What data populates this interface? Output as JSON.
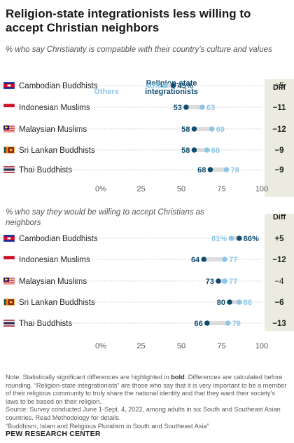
{
  "title": "Religion-state integrationists less willing to accept Christian neighbors",
  "colors": {
    "others": "#8dc6e8",
    "integrationists": "#0f4c6e",
    "diff_bg": "#ebebdf",
    "connector": "#dcdcdc",
    "gridline": "#b5b5b5"
  },
  "legend": {
    "others": "Others",
    "integrationists": "Religion-state integrationists"
  },
  "diff_header": "Diff",
  "chart_data": [
    {
      "type": "dot",
      "subtitle": "% who say Christianity is compatible with their country’s culture and values",
      "xlim": [
        0,
        100
      ],
      "ticks": [
        "0%",
        "25",
        "50",
        "75",
        "100"
      ],
      "tick_values": [
        0,
        25,
        50,
        75,
        100
      ],
      "rows": [
        {
          "label": "Cambodian Buddhists",
          "flag": "cambodia-flag-icon",
          "others": 40,
          "integrationists": 45,
          "others_label": "40%",
          "integrationists_label": "45%",
          "diff": "+5",
          "diff_bold": false
        },
        {
          "label": "Indonesian Muslims",
          "flag": "indonesia-flag-icon",
          "others": 63,
          "integrationists": 53,
          "others_label": "63",
          "integrationists_label": "53",
          "diff": "−11",
          "diff_bold": true
        },
        {
          "label": "Malaysian Muslims",
          "flag": "malaysia-flag-icon",
          "others": 69,
          "integrationists": 58,
          "others_label": "69",
          "integrationists_label": "58",
          "diff": "−12",
          "diff_bold": true
        },
        {
          "label": "Sri Lankan Buddhists",
          "flag": "srilanka-flag-icon",
          "others": 66,
          "integrationists": 58,
          "others_label": "66",
          "integrationists_label": "58",
          "diff": "−9",
          "diff_bold": true
        },
        {
          "label": "Thai Buddhists",
          "flag": "thailand-flag-icon",
          "others": 78,
          "integrationists": 68,
          "others_label": "78",
          "integrationists_label": "68",
          "diff": "−9",
          "diff_bold": true
        }
      ]
    },
    {
      "type": "dot",
      "subtitle": "% who say they would be willing to accept Christians as neighbors",
      "xlim": [
        0,
        100
      ],
      "ticks": [
        "0%",
        "25",
        "50",
        "75",
        "100"
      ],
      "tick_values": [
        0,
        25,
        50,
        75,
        100
      ],
      "rows": [
        {
          "label": "Cambodian Buddhists",
          "flag": "cambodia-flag-icon",
          "others": 81,
          "integrationists": 86,
          "others_label": "81%",
          "integrationists_label": "86%",
          "diff": "+5",
          "diff_bold": true
        },
        {
          "label": "Indonesian Muslims",
          "flag": "indonesia-flag-icon",
          "others": 77,
          "integrationists": 64,
          "others_label": "77",
          "integrationists_label": "64",
          "diff": "−12",
          "diff_bold": true
        },
        {
          "label": "Malaysian Muslims",
          "flag": "malaysia-flag-icon",
          "others": 77,
          "integrationists": 73,
          "others_label": "77",
          "integrationists_label": "73",
          "diff": "−4",
          "diff_bold": false
        },
        {
          "label": "Sri Lankan Buddhists",
          "flag": "srilanka-flag-icon",
          "others": 86,
          "integrationists": 80,
          "others_label": "86",
          "integrationists_label": "80",
          "diff": "−6",
          "diff_bold": true
        },
        {
          "label": "Thai Buddhists",
          "flag": "thailand-flag-icon",
          "others": 79,
          "integrationists": 66,
          "others_label": "79",
          "integrationists_label": "66",
          "diff": "−13",
          "diff_bold": true
        }
      ]
    }
  ],
  "notes": {
    "note_prefix": "Note: Statistically significant differences are highlighted in ",
    "note_bold": "bold",
    "note_rest": ". Differences are calculated before rounding. “Religion-state integrationists” are those who say that it is very important to be a member of their religious community to truly share the national identity and that they want their society’s laws to be based on their religion.",
    "source": "Source: Survey conducted June 1-Sept. 4, 2022, among adults in six South and Southeast Asian countries. Read Methodology for details.",
    "report": "“Buddhism, Islam and Religious Pluralism in South and Southeast Asia”"
  },
  "org": "PEW RESEARCH CENTER"
}
